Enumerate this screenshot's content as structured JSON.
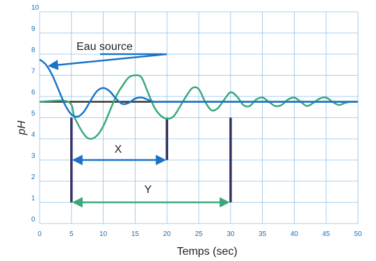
{
  "chart_data": {
    "type": "line",
    "title": "",
    "xlabel": "Temps (sec)",
    "ylabel": "pH",
    "xlim": [
      0,
      50
    ],
    "ylim": [
      0,
      10
    ],
    "x_ticks": [
      "0",
      "5",
      "10",
      "15",
      "20",
      "25",
      "30",
      "35",
      "40",
      "45",
      "50"
    ],
    "y_ticks": [
      "0",
      "1",
      "2",
      "3",
      "4",
      "5",
      "6",
      "7",
      "8",
      "9",
      "10"
    ],
    "grid": true,
    "setpoint": 5.75,
    "series": [
      {
        "color": "#1a73c9",
        "x": [
          0,
          1,
          2,
          3,
          4,
          5,
          6,
          7,
          8,
          9,
          10,
          11,
          12,
          13,
          14,
          15,
          16,
          17,
          18,
          20,
          25,
          30,
          35,
          40,
          45,
          50
        ],
        "y": [
          7.75,
          7.5,
          7.0,
          6.3,
          5.6,
          5.15,
          5.05,
          5.3,
          5.8,
          6.25,
          6.4,
          6.25,
          5.9,
          5.65,
          5.7,
          5.9,
          5.95,
          5.85,
          5.75,
          5.75,
          5.75,
          5.75,
          5.75,
          5.75,
          5.75,
          5.75
        ]
      },
      {
        "color": "#3aa87a",
        "x": [
          0,
          4.5,
          5.5,
          7,
          8,
          9,
          10,
          11,
          12,
          13,
          14,
          15,
          16,
          17,
          18,
          19,
          20,
          21,
          22,
          23,
          24,
          25,
          26,
          27,
          28,
          29,
          30,
          31,
          32,
          33,
          34,
          35,
          36,
          37,
          38,
          39,
          40,
          41,
          42,
          43,
          44,
          45,
          46,
          47,
          48,
          49,
          50
        ],
        "y": [
          5.75,
          5.75,
          5.0,
          4.2,
          4.0,
          4.15,
          4.6,
          5.3,
          6.0,
          6.5,
          6.9,
          7.0,
          6.9,
          6.2,
          5.5,
          5.1,
          4.95,
          5.05,
          5.5,
          6.0,
          6.4,
          6.35,
          5.75,
          5.35,
          5.45,
          5.85,
          6.2,
          6.0,
          5.6,
          5.55,
          5.85,
          5.95,
          5.75,
          5.55,
          5.6,
          5.85,
          5.95,
          5.75,
          5.55,
          5.7,
          5.9,
          5.95,
          5.75,
          5.6,
          5.7,
          5.75,
          5.75
        ]
      }
    ],
    "annotations": {
      "source_label": "Eau source",
      "x_label": "X",
      "y_label": "Y",
      "source_arrow_color": "#1a73c9",
      "x_span": [
        5,
        20
      ],
      "y_span": [
        5,
        30
      ],
      "x_span_y": 3,
      "y_span_y": 1
    },
    "colors": {
      "tick_text": "#1a6fb3",
      "grid": "#8ec3ea",
      "setpoint_line": "#333333",
      "markers": "#333366"
    }
  }
}
